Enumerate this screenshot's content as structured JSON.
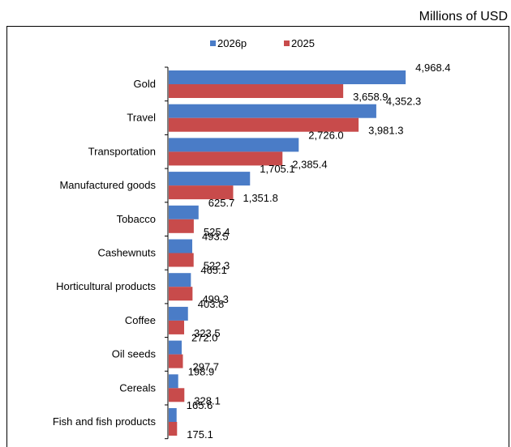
{
  "chart_data": {
    "type": "bar",
    "orientation": "horizontal",
    "unit_label": "Millions of USD",
    "categories": [
      "Gold",
      "Travel",
      "Transportation",
      "Manufactured goods",
      "Tobacco",
      "Cashewnuts",
      "Horticultural products",
      "Coffee",
      "Oil seeds",
      "Cereals",
      "Fish and fish products"
    ],
    "series": [
      {
        "name": "2026p",
        "color": "#4a7cc7",
        "values": [
          4968.4,
          4352.3,
          2726.0,
          1705.1,
          625.7,
          493.5,
          465.1,
          403.8,
          272.0,
          198.9,
          165.6
        ],
        "labels": [
          "4,968.4",
          "4,352.3",
          "2,726.0",
          "1,705.1",
          "625.7",
          "493.5",
          "465.1",
          "403.8",
          "272.0",
          "198.9",
          "165.6"
        ]
      },
      {
        "name": "2025",
        "color": "#c84b4b",
        "values": [
          3658.9,
          3981.3,
          2385.4,
          1351.8,
          525.4,
          522.3,
          499.3,
          323.5,
          297.7,
          328.1,
          175.1
        ],
        "labels": [
          "3,658.9",
          "3,981.3",
          "2,385.4",
          "1,351.8",
          "525.4",
          "522.3",
          "499.3",
          "323.5",
          "297.7",
          "328.1",
          "175.1"
        ]
      }
    ],
    "xlim": [
      0,
      5000
    ],
    "legend_position": "top-center",
    "grid": false
  }
}
